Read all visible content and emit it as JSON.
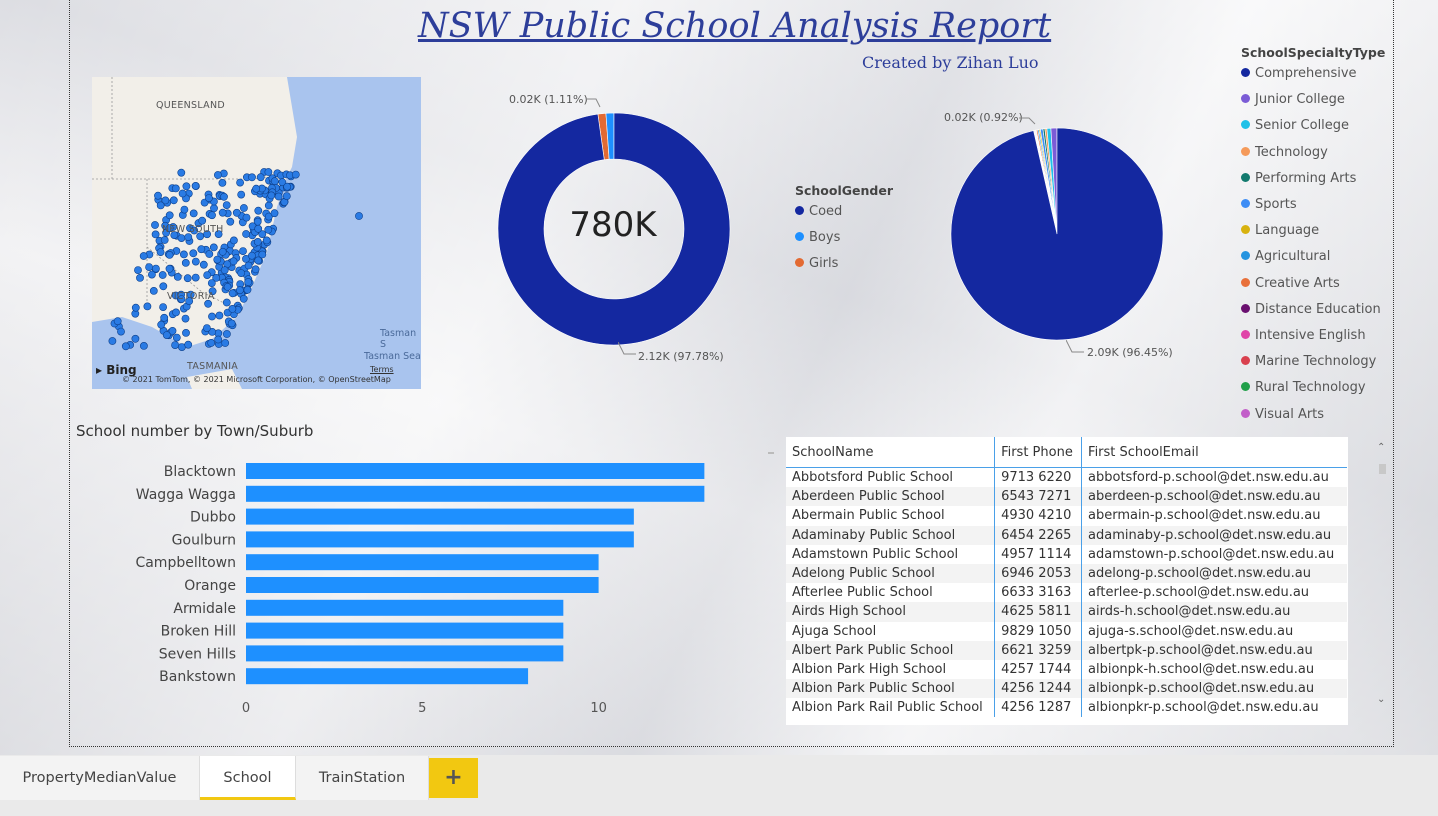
{
  "header": {
    "title": "NSW Public School Analysis Report",
    "subtitle": "Created by Zihan Luo"
  },
  "map": {
    "labels": {
      "queensland": "QUEENSLAND",
      "nsw": "NEW SOUTH",
      "victoria": "VICTORIA",
      "tasmania": "TASMANIA",
      "tasman_s": "Tasman S",
      "tasman_sea": "Tasman Sea"
    },
    "bing": "Bing",
    "attribution": "© 2021 TomTom, © 2021 Microsoft Corporation, © OpenStreetMap",
    "terms": "Terms",
    "point_color": "#2a7be4"
  },
  "donut": {
    "center_value": "780K",
    "label_small": "0.02K (1.11%)",
    "label_large": "2.12K (97.78%)"
  },
  "gender_legend": {
    "title": "SchoolGender",
    "items": [
      {
        "label": "Coed",
        "color": "#1428a0"
      },
      {
        "label": "Boys",
        "color": "#1e90ff"
      },
      {
        "label": "Girls",
        "color": "#e36a32"
      }
    ]
  },
  "pie": {
    "label_small": "0.02K (0.92%)",
    "label_large": "2.09K (96.45%)"
  },
  "specialty_legend": {
    "title": "SchoolSpecialtyType",
    "items": [
      {
        "label": "Comprehensive",
        "color": "#1428a0"
      },
      {
        "label": "Junior College",
        "color": "#7b5cd6"
      },
      {
        "label": "Senior College",
        "color": "#1fc1e8"
      },
      {
        "label": "Technology",
        "color": "#f59a5a"
      },
      {
        "label": "Performing Arts",
        "color": "#137a6e"
      },
      {
        "label": "Sports",
        "color": "#3d8df5"
      },
      {
        "label": "Language",
        "color": "#d8b20f"
      },
      {
        "label": "Agricultural",
        "color": "#2594e0"
      },
      {
        "label": "Creative Arts",
        "color": "#e8703a"
      },
      {
        "label": "Distance Education",
        "color": "#6a1070"
      },
      {
        "label": "Intensive English",
        "color": "#e044a8"
      },
      {
        "label": "Marine Technology",
        "color": "#d9404e"
      },
      {
        "label": "Rural Technology",
        "color": "#21a04a"
      },
      {
        "label": "Visual Arts",
        "color": "#c25ec9"
      }
    ]
  },
  "chart_data": [
    {
      "type": "pie",
      "variant": "donut",
      "categories": [
        "Coed",
        "Boys",
        "Girls"
      ],
      "values": [
        97.78,
        1.11,
        1.11
      ],
      "colors": [
        "#1428a0",
        "#1e90ff",
        "#e36a32"
      ],
      "center_label": "780K"
    },
    {
      "type": "pie",
      "categories": [
        "Comprehensive",
        "Junior College",
        "Senior College",
        "Technology",
        "Performing Arts",
        "Sports",
        "Language",
        "Agricultural",
        "Creative Arts",
        "Distance Education",
        "Intensive English",
        "Marine Technology",
        "Rural Technology",
        "Visual Arts"
      ],
      "values": [
        96.45,
        0.92,
        0.6,
        0.3,
        0.3,
        0.4,
        0.2,
        0.2,
        0.2,
        0.1,
        0.1,
        0.1,
        0.1,
        0.03
      ],
      "colors": [
        "#1428a0",
        "#7b5cd6",
        "#1fc1e8",
        "#f59a5a",
        "#137a6e",
        "#3d8df5",
        "#d8b20f",
        "#2594e0",
        "#e8703a",
        "#6a1070",
        "#e044a8",
        "#d9404e",
        "#21a04a",
        "#c25ec9"
      ]
    },
    {
      "type": "bar",
      "orientation": "horizontal",
      "title": "School number by Town/Suburb",
      "categories": [
        "Blacktown",
        "Wagga Wagga",
        "Dubbo",
        "Goulburn",
        "Campbelltown",
        "Orange",
        "Armidale",
        "Broken Hill",
        "Seven Hills",
        "Bankstown"
      ],
      "values": [
        13,
        13,
        11,
        11,
        10,
        10,
        9,
        9,
        9,
        8
      ],
      "xlim": [
        0,
        13.5
      ],
      "xticks": [
        0,
        5,
        10
      ],
      "color": "#1e90ff",
      "grid": false
    }
  ],
  "table": {
    "headers": [
      "SchoolName",
      "First Phone",
      "First SchoolEmail"
    ],
    "rows": [
      [
        "Abbotsford Public School",
        "9713 6220",
        "abbotsford-p.school@det.nsw.edu.au"
      ],
      [
        "Aberdeen Public School",
        "6543 7271",
        "aberdeen-p.school@det.nsw.edu.au"
      ],
      [
        "Abermain Public School",
        "4930 4210",
        "abermain-p.school@det.nsw.edu.au"
      ],
      [
        "Adaminaby Public School",
        "6454 2265",
        "adaminaby-p.school@det.nsw.edu.au"
      ],
      [
        "Adamstown Public School",
        "4957 1114",
        "adamstown-p.school@det.nsw.edu.au"
      ],
      [
        "Adelong Public School",
        "6946 2053",
        "adelong-p.school@det.nsw.edu.au"
      ],
      [
        "Afterlee Public School",
        "6633 3163",
        "afterlee-p.school@det.nsw.edu.au"
      ],
      [
        "Airds High School",
        "4625 5811",
        "airds-h.school@det.nsw.edu.au"
      ],
      [
        "Ajuga School",
        "9829 1050",
        "ajuga-s.school@det.nsw.edu.au"
      ],
      [
        "Albert Park Public School",
        "6621 3259",
        "albertpk-p.school@det.nsw.edu.au"
      ],
      [
        "Albion Park High School",
        "4257 1744",
        "albionpk-h.school@det.nsw.edu.au"
      ],
      [
        "Albion Park Public School",
        "4256 1244",
        "albionpk-p.school@det.nsw.edu.au"
      ],
      [
        "Albion Park Rail Public School",
        "4256 1287",
        "albionpkr-p.school@det.nsw.edu.au"
      ]
    ]
  },
  "tabs": [
    {
      "label": "PropertyMedianValue",
      "active": false
    },
    {
      "label": "School",
      "active": true
    },
    {
      "label": "TrainStation",
      "active": false
    }
  ],
  "add_tab_label": "+"
}
